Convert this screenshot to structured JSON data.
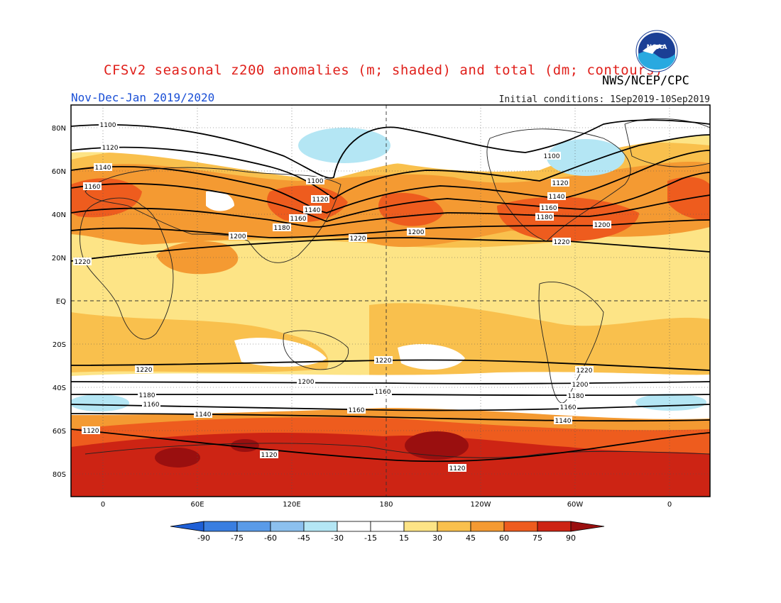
{
  "header": {
    "title": "CFSv2 seasonal z200 anomalies (m; shaded) and total (dm; contours)",
    "credit": "NWS/NCEP/CPC",
    "season": "Nov-Dec-Jan 2019/2020",
    "initial_conditions": "Initial conditions: 1Sep2019-10Sep2019",
    "logo_text": "NOAA"
  },
  "map": {
    "lat_labels": [
      "80N",
      "60N",
      "40N",
      "20N",
      "EQ",
      "20S",
      "40S",
      "60S",
      "80S"
    ],
    "lon_labels": [
      "0",
      "60E",
      "120E",
      "180",
      "120W",
      "60W",
      "0"
    ],
    "contour_labels": [
      "1100",
      "1120",
      "1140",
      "1160",
      "1200",
      "1220",
      "1100",
      "1120",
      "1140",
      "1160",
      "1180",
      "1100",
      "1120",
      "1140",
      "1160",
      "1180",
      "1200",
      "1220",
      "1200",
      "1220",
      "1220",
      "1200",
      "1180",
      "1160",
      "1140",
      "1120",
      "1220",
      "1200",
      "1180",
      "1160",
      "1120",
      "1160",
      "1140",
      "1120",
      "1220",
      "1200",
      "1180",
      "1160",
      "1140",
      "1120"
    ],
    "colors": {
      "c_-90": "#1e5fd6",
      "c_-75": "#3a7ee0",
      "c_-60": "#5a9be8",
      "c_-45": "#8cc0ee",
      "c_-30": "#b4e6f4",
      "c_-15": "#ffffff",
      "c_15": "#fde486",
      "c_30": "#f9c04d",
      "c_45": "#f49a32",
      "c_60": "#ee5c1e",
      "c_75": "#cd2414",
      "c_90": "#9a0f0f"
    }
  },
  "colorbar": {
    "labels": [
      "-90",
      "-75",
      "-60",
      "-45",
      "-30",
      "-15",
      "15",
      "30",
      "45",
      "60",
      "75",
      "90"
    ],
    "colors": [
      "#1e5fd6",
      "#3a7ee0",
      "#5a9be8",
      "#8cc0ee",
      "#b4e6f4",
      "#ffffff",
      "#ffffff",
      "#fde486",
      "#f9c04d",
      "#f49a32",
      "#ee5c1e",
      "#cd2414",
      "#9a0f0f"
    ]
  }
}
